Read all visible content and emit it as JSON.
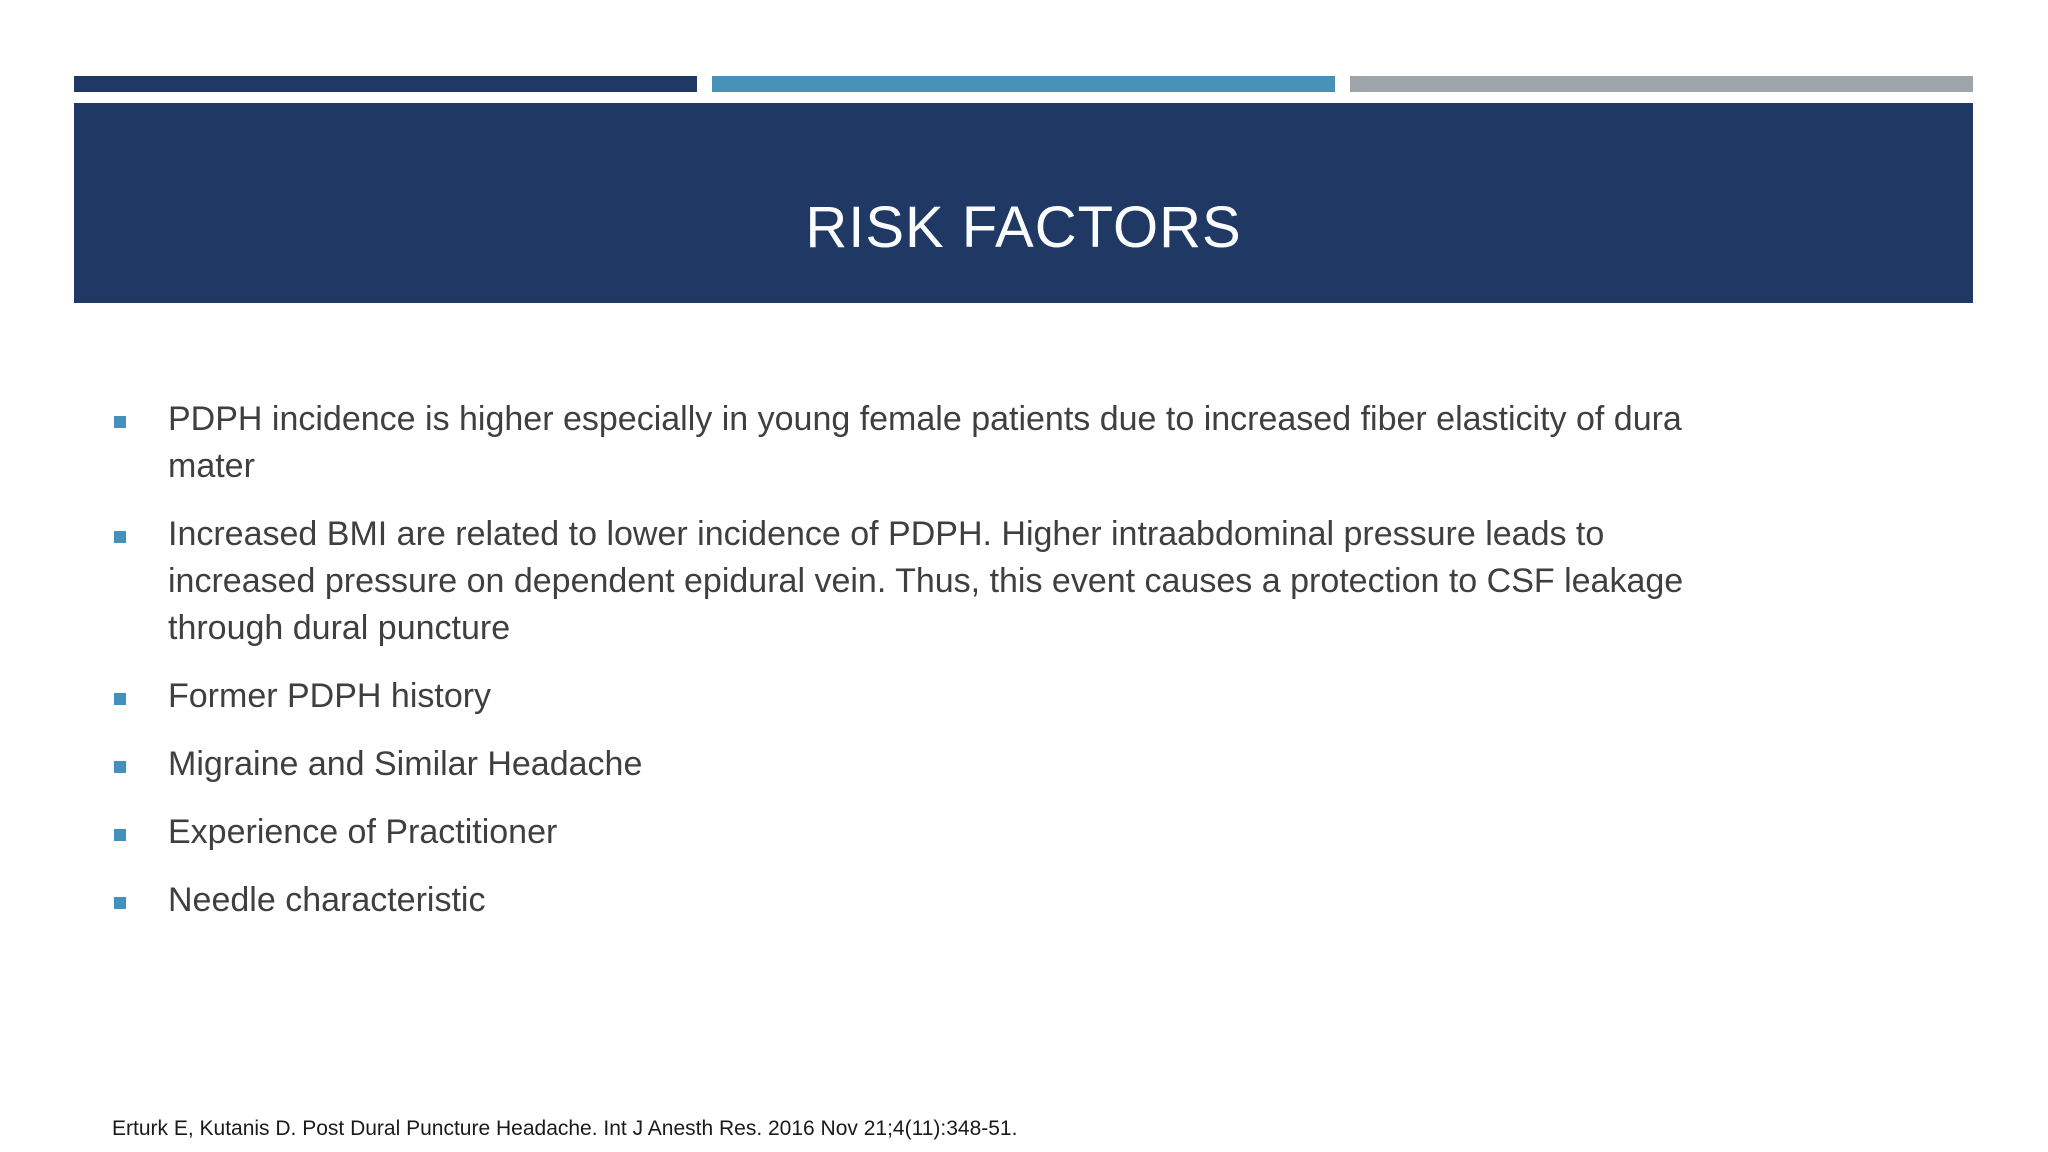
{
  "slide": {
    "title": "RISK FACTORS",
    "bullets": [
      "PDPH incidence is higher especially in young female patients due to increased fiber elasticity of dura\nmater",
      "Increased BMI are related to lower incidence of PDPH. Higher intraabdominal pressure leads to\nincreased pressure on dependent epidural vein. Thus, this event causes a protection to CSF leakage\nthrough dural puncture",
      "Former PDPH history",
      "Migraine and Similar Headache",
      "Experience of Practitioner",
      "Needle characteristic"
    ],
    "citation": "Erturk E, Kutanis D. Post Dural Puncture Headache. Int J Anesth Res. 2016 Nov 21;4(11):348-51.",
    "colors": {
      "banner_navy": "#203864",
      "accent_bar_navy": "#203864",
      "accent_bar_blue": "#4891b8",
      "accent_bar_gray": "#a0a5ab",
      "bullet_square_blue": "#4490bc",
      "body_text": "#3f3f3f",
      "title_text": "#fbfcfd",
      "citation_text": "#1a1a1a",
      "background": "#ffffff"
    }
  }
}
